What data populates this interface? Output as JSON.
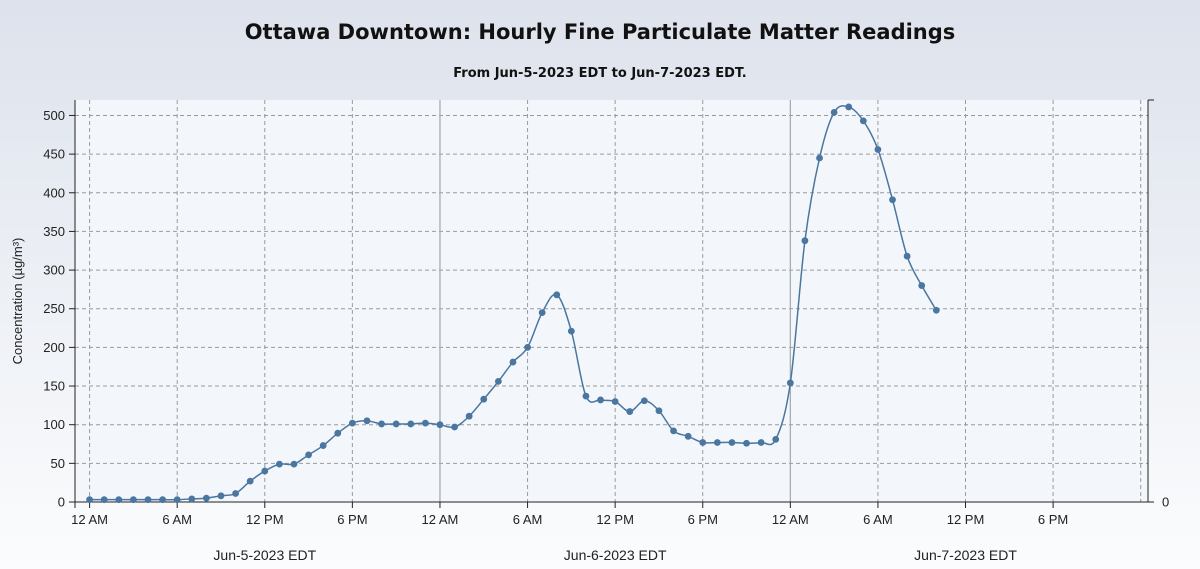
{
  "chart_data": {
    "type": "line",
    "title": "Ottawa Downtown: Hourly Fine Particulate Matter Readings",
    "subtitle": "From Jun-5-2023 EDT to Jun-7-2023 EDT.",
    "ylabel": "Concentration (µg/m³)",
    "ylim": [
      0,
      520
    ],
    "yticks": [
      0,
      50,
      100,
      150,
      200,
      250,
      300,
      350,
      400,
      450,
      500
    ],
    "right_axis_ticks": [
      "0"
    ],
    "x_tick_labels": [
      "12 AM",
      "6 AM",
      "12 PM",
      "6 PM",
      "12 AM",
      "6 AM",
      "12 PM",
      "6 PM",
      "12 AM",
      "6 AM",
      "12 PM",
      "6 PM"
    ],
    "x_tick_hours": [
      0,
      6,
      12,
      18,
      24,
      30,
      36,
      42,
      48,
      54,
      60,
      66
    ],
    "xlim_hours": [
      -1,
      72.5
    ],
    "day_dividers_hours": [
      24,
      48
    ],
    "date_labels": [
      {
        "label": "Jun-5-2023 EDT",
        "hour": 12
      },
      {
        "label": "Jun-6-2023 EDT",
        "hour": 36
      },
      {
        "label": "Jun-7-2023 EDT",
        "hour": 60
      }
    ],
    "grid": true,
    "series": [
      {
        "color": "#4a76a0",
        "x_hours": [
          0,
          1,
          2,
          3,
          4,
          5,
          6,
          7,
          8,
          9,
          10,
          11,
          12,
          13,
          14,
          15,
          16,
          17,
          18,
          19,
          20,
          21,
          22,
          23,
          24,
          25,
          26,
          27,
          28,
          29,
          30,
          31,
          32,
          33,
          34,
          35,
          36,
          37,
          38,
          39,
          40,
          41,
          42,
          43,
          44,
          45,
          46,
          47,
          48,
          49,
          50,
          51,
          52,
          53,
          54,
          55,
          56,
          57,
          58,
          59
        ],
        "values": [
          3,
          3,
          3,
          3,
          3,
          3,
          3,
          4,
          5,
          8,
          11,
          27,
          40,
          49,
          49,
          61,
          73,
          89,
          102,
          105,
          101,
          101,
          101,
          102,
          100,
          97,
          111,
          133,
          156,
          181,
          200,
          245,
          268,
          221,
          137,
          132,
          130,
          117,
          131,
          118,
          92,
          85,
          77,
          77,
          77,
          76,
          77,
          81,
          154,
          338,
          445,
          504,
          511,
          493,
          456,
          391,
          318,
          280,
          248,
          null
        ]
      }
    ]
  }
}
